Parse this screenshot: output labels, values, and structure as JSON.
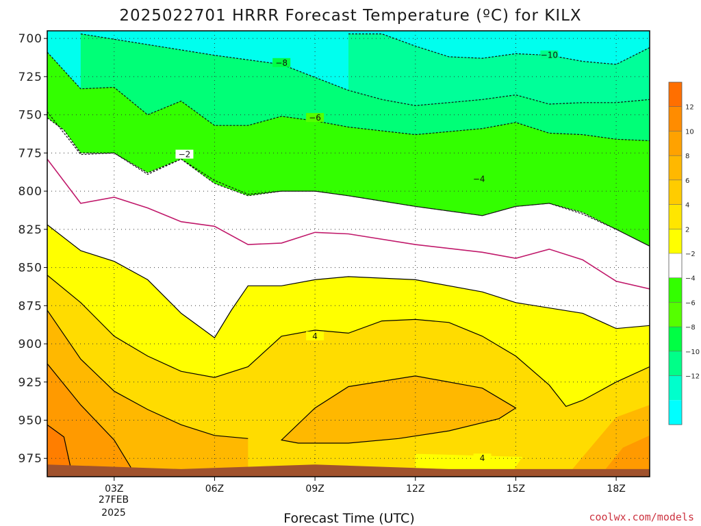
{
  "title": "2025022701 HRRR Forecast Temperature (ºC) for KILX",
  "xlabel": "Forecast Time (UTC)",
  "credit": "coolwx.com/models",
  "date_line1": "27FEB",
  "date_line2": "2025",
  "chart_data": {
    "type": "contour",
    "title": "2025022701 HRRR Forecast Temperature (ºC) for KILX",
    "xlabel": "Forecast Time (UTC)",
    "ylabel": "",
    "x_range_hours_utc": [
      1,
      19
    ],
    "y_range_hpa": [
      695,
      987
    ],
    "y_axis": "pressure (hPa), increasing downward",
    "ground_color": "#a0522d",
    "x_ticks": [
      {
        "hour": 3,
        "label": "03Z"
      },
      {
        "hour": 6,
        "label": "06Z"
      },
      {
        "hour": 9,
        "label": "09Z"
      },
      {
        "hour": 12,
        "label": "12Z"
      },
      {
        "hour": 15,
        "label": "15Z"
      },
      {
        "hour": 18,
        "label": "18Z"
      }
    ],
    "y_ticks": [
      700,
      725,
      750,
      775,
      800,
      825,
      850,
      875,
      900,
      925,
      950,
      975
    ],
    "grid": "dotted",
    "colorbar": {
      "position": "right",
      "levels": [
        -14,
        -12,
        -10,
        -8,
        -6,
        -4,
        -2,
        2,
        4,
        6,
        8,
        10,
        12,
        14
      ],
      "labels": [
        "12",
        "10",
        "8",
        "6",
        "4",
        "2",
        "−2",
        "−4",
        "−6",
        "−8",
        "−10",
        "−12"
      ],
      "colors": [
        "#ff6f00",
        "#ff8c00",
        "#ffa200",
        "#ffb800",
        "#ffcc00",
        "#ffe600",
        "#ffff00",
        "#ffffff",
        "#33ff00",
        "#55ff00",
        "#00ff44",
        "#00ff88",
        "#00ffcc",
        "#00ffff"
      ]
    },
    "labeled_contours": [
      {
        "value": -10,
        "text": "−10",
        "x_hour": 16.0,
        "p": 711
      },
      {
        "value": -8,
        "text": "−8",
        "x_hour": 8.0,
        "p": 716
      },
      {
        "value": -6,
        "text": "−6",
        "x_hour": 9.0,
        "p": 752
      },
      {
        "value": -4,
        "text": "−4",
        "x_hour": 13.9,
        "p": 792
      },
      {
        "value": -2,
        "text": "−2",
        "x_hour": 5.1,
        "p": 776
      },
      {
        "value": 4,
        "text": "4",
        "x_hour": 9.0,
        "p": 895
      },
      {
        "value": 4,
        "text": "4",
        "x_hour": 14.0,
        "p": 975
      }
    ],
    "isotherms": [
      {
        "value": -10,
        "style": "dashed",
        "points": [
          [
            10.0,
            697
          ],
          [
            11.0,
            697
          ],
          [
            12.0,
            705
          ],
          [
            13.0,
            712
          ],
          [
            14.0,
            713
          ],
          [
            15.0,
            710
          ],
          [
            16.0,
            711
          ],
          [
            17.0,
            715
          ],
          [
            18.0,
            717
          ],
          [
            19.0,
            706
          ]
        ]
      },
      {
        "value": -8,
        "style": "dashed",
        "points": [
          [
            2.0,
            697
          ],
          [
            4.0,
            704
          ],
          [
            6.0,
            711
          ],
          [
            8.0,
            717
          ],
          [
            10.0,
            734
          ],
          [
            11.0,
            740
          ],
          [
            12.0,
            744
          ],
          [
            13.0,
            742
          ],
          [
            14.0,
            740
          ],
          [
            15.0,
            737
          ],
          [
            16.0,
            743
          ],
          [
            17.0,
            742
          ],
          [
            18.0,
            742
          ],
          [
            19.0,
            740
          ]
        ]
      },
      {
        "value": -6,
        "style": "dashed",
        "points": [
          [
            1.0,
            709
          ],
          [
            2.0,
            733
          ],
          [
            3.0,
            732
          ],
          [
            4.0,
            750
          ],
          [
            5.0,
            741
          ],
          [
            6.0,
            757
          ],
          [
            7.0,
            757
          ],
          [
            8.0,
            751
          ],
          [
            9.0,
            754
          ],
          [
            10.0,
            758
          ],
          [
            12.0,
            763
          ],
          [
            14.0,
            759
          ],
          [
            15.0,
            755
          ],
          [
            16.0,
            762
          ],
          [
            17.0,
            763
          ],
          [
            18.0,
            766
          ],
          [
            19.0,
            767
          ]
        ]
      },
      {
        "value": -4,
        "style": "dashed",
        "points": [
          [
            1.0,
            748
          ],
          [
            2.0,
            776
          ],
          [
            3.0,
            775
          ],
          [
            4.0,
            789
          ],
          [
            5.0,
            779
          ],
          [
            6.0,
            793
          ],
          [
            7.0,
            802
          ],
          [
            8.0,
            800
          ],
          [
            9.0,
            800
          ],
          [
            10.0,
            803
          ],
          [
            12.0,
            810
          ],
          [
            14.0,
            816
          ],
          [
            15.0,
            810
          ],
          [
            16.0,
            808
          ],
          [
            17.0,
            815
          ],
          [
            18.0,
            825
          ],
          [
            19.0,
            836
          ]
        ]
      },
      {
        "value": -2,
        "style": "dashed",
        "points": [
          [
            1.0,
            752
          ],
          [
            1.5,
            760
          ],
          [
            2.0,
            775
          ],
          [
            3.0,
            775
          ],
          [
            4.0,
            788
          ],
          [
            5.0,
            779
          ],
          [
            6.0,
            795
          ],
          [
            7.0,
            803
          ],
          [
            8.0,
            800
          ],
          [
            9.0,
            800
          ],
          [
            10.0,
            803
          ],
          [
            12.0,
            810
          ],
          [
            14.0,
            816
          ],
          [
            15.0,
            810
          ],
          [
            16.0,
            808
          ],
          [
            17.0,
            814
          ],
          [
            18.0,
            825
          ],
          [
            19.0,
            836
          ]
        ]
      },
      {
        "value": 0,
        "style": "solid-magenta",
        "points": [
          [
            1.0,
            779
          ],
          [
            2.0,
            808
          ],
          [
            3.0,
            804
          ],
          [
            4.0,
            811
          ],
          [
            5.0,
            820
          ],
          [
            6.0,
            823
          ],
          [
            7.0,
            835
          ],
          [
            8.0,
            834
          ],
          [
            9.0,
            827
          ],
          [
            10.0,
            828
          ],
          [
            12.0,
            835
          ],
          [
            14.0,
            840
          ],
          [
            15.0,
            844
          ],
          [
            16.0,
            838
          ],
          [
            17.0,
            845
          ],
          [
            18.0,
            859
          ],
          [
            19.0,
            864
          ]
        ]
      },
      {
        "value": 2,
        "style": "solid",
        "points": [
          [
            1.0,
            822
          ],
          [
            2.0,
            839
          ],
          [
            3.0,
            846
          ],
          [
            4.0,
            858
          ],
          [
            5.0,
            880
          ],
          [
            6.0,
            896
          ],
          [
            6.5,
            878
          ],
          [
            7.0,
            862
          ],
          [
            8.0,
            862
          ],
          [
            9.0,
            858
          ],
          [
            10.0,
            856
          ],
          [
            12.0,
            858
          ],
          [
            14.0,
            866
          ],
          [
            15.0,
            873
          ],
          [
            17.0,
            880
          ],
          [
            18.0,
            890
          ],
          [
            19.0,
            888
          ]
        ]
      },
      {
        "value": 4,
        "style": "solid",
        "points": [
          [
            1.0,
            855
          ],
          [
            2.0,
            873
          ],
          [
            3.0,
            895
          ],
          [
            4.0,
            908
          ],
          [
            5.0,
            918
          ],
          [
            6.0,
            922
          ],
          [
            7.0,
            915
          ],
          [
            8.0,
            895
          ],
          [
            9.0,
            891
          ],
          [
            10.0,
            893
          ],
          [
            11.0,
            885
          ],
          [
            12.0,
            884
          ],
          [
            13.0,
            886
          ],
          [
            14.0,
            895
          ],
          [
            15.0,
            908
          ],
          [
            16.0,
            927
          ],
          [
            16.5,
            941
          ],
          [
            17.0,
            937
          ],
          [
            18.0,
            925
          ],
          [
            19.0,
            915
          ]
        ]
      },
      {
        "value": 6,
        "style": "solid",
        "points": [
          [
            1.0,
            878
          ],
          [
            2.0,
            910
          ],
          [
            3.0,
            931
          ],
          [
            4.0,
            943
          ],
          [
            5.0,
            953
          ],
          [
            6.0,
            960
          ],
          [
            7.0,
            962
          ]
        ]
      },
      {
        "value": 8,
        "style": "solid",
        "points": [
          [
            1.0,
            913
          ],
          [
            2.0,
            940
          ],
          [
            3.0,
            963
          ],
          [
            3.5,
            981
          ]
        ]
      },
      {
        "value": 10,
        "style": "solid",
        "points": [
          [
            1.0,
            953
          ],
          [
            1.5,
            961
          ],
          [
            1.7,
            981
          ]
        ]
      },
      {
        "value": 6,
        "style": "solid-closed",
        "points": [
          [
            8.0,
            963
          ],
          [
            9.0,
            942
          ],
          [
            10.0,
            928
          ],
          [
            12.0,
            921
          ],
          [
            14.0,
            929
          ],
          [
            15.0,
            942
          ],
          [
            14.5,
            949
          ],
          [
            13.0,
            957
          ],
          [
            11.5,
            962
          ],
          [
            10.0,
            965
          ],
          [
            8.5,
            965
          ]
        ]
      }
    ]
  }
}
